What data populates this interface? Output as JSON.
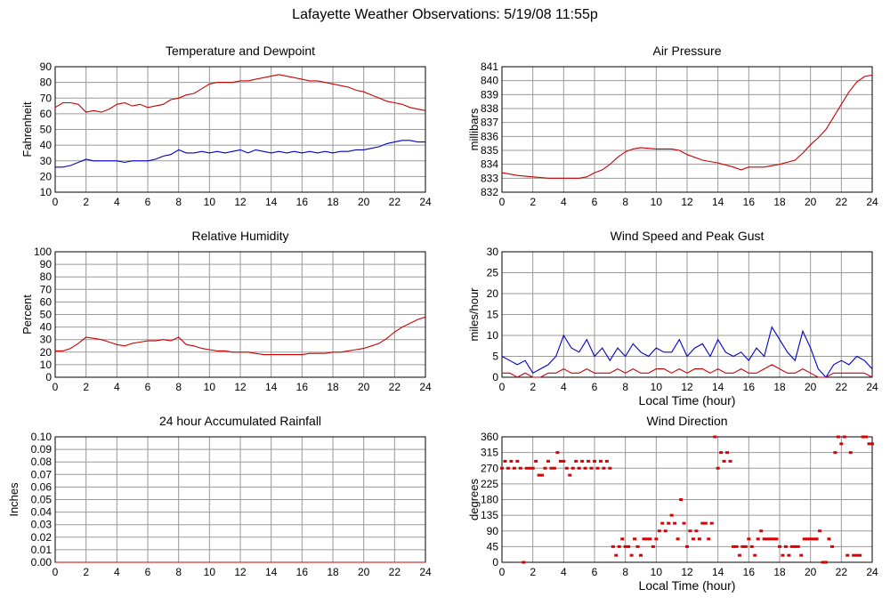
{
  "title": "Lafayette Weather Observations: 5/19/08 11:55p",
  "chart_data": [
    {
      "id": "temp",
      "type": "line",
      "title": "Temperature and Dewpoint",
      "xlabel": "",
      "ylabel": "Fahrenheit",
      "xlim": [
        0,
        24
      ],
      "ylim": [
        10,
        90
      ],
      "xticks": [
        0,
        2,
        4,
        6,
        8,
        10,
        12,
        14,
        16,
        18,
        20,
        22,
        24
      ],
      "yticks": [
        10,
        20,
        30,
        40,
        50,
        60,
        70,
        80,
        90
      ],
      "grid": true,
      "series": [
        {
          "color": "#cc0000",
          "x": [
            0,
            0.5,
            1,
            1.5,
            2,
            2.5,
            3,
            3.5,
            4,
            4.5,
            5,
            5.5,
            6,
            6.5,
            7,
            7.5,
            8,
            8.5,
            9,
            9.5,
            10,
            10.5,
            11,
            11.5,
            12,
            12.5,
            13,
            13.5,
            14,
            14.5,
            15,
            15.5,
            16,
            16.5,
            17,
            17.5,
            18,
            18.5,
            19,
            19.5,
            20,
            20.5,
            21,
            21.5,
            22,
            22.5,
            23,
            23.5,
            24
          ],
          "values": [
            64,
            67,
            67,
            66,
            61,
            62,
            61,
            63,
            66,
            67,
            65,
            66,
            64,
            65,
            66,
            69,
            70,
            72,
            73,
            76,
            79,
            80,
            80,
            80,
            81,
            81,
            82,
            83,
            84,
            85,
            84,
            83,
            82,
            81,
            81,
            80,
            79,
            78,
            77,
            75,
            74,
            72,
            70,
            68,
            67,
            66,
            64,
            63,
            62
          ]
        },
        {
          "color": "#0000cc",
          "x": [
            0,
            0.5,
            1,
            1.5,
            2,
            2.5,
            3,
            3.5,
            4,
            4.5,
            5,
            5.5,
            6,
            6.5,
            7,
            7.5,
            8,
            8.5,
            9,
            9.5,
            10,
            10.5,
            11,
            11.5,
            12,
            12.5,
            13,
            13.5,
            14,
            14.5,
            15,
            15.5,
            16,
            16.5,
            17,
            17.5,
            18,
            18.5,
            19,
            19.5,
            20,
            20.5,
            21,
            21.5,
            22,
            22.5,
            23,
            23.5,
            24
          ],
          "values": [
            26,
            26,
            27,
            29,
            31,
            30,
            30,
            30,
            30,
            29,
            30,
            30,
            30,
            31,
            33,
            34,
            37,
            35,
            35,
            36,
            35,
            36,
            35,
            36,
            37,
            35,
            37,
            36,
            35,
            36,
            35,
            36,
            35,
            36,
            35,
            36,
            35,
            36,
            36,
            37,
            37,
            38,
            39,
            41,
            42,
            43,
            43,
            42,
            42
          ]
        }
      ]
    },
    {
      "id": "pressure",
      "type": "line",
      "title": "Air Pressure",
      "xlabel": "",
      "ylabel": "millibars",
      "xlim": [
        0,
        24
      ],
      "ylim": [
        832,
        841
      ],
      "xticks": [
        0,
        2,
        4,
        6,
        8,
        10,
        12,
        14,
        16,
        18,
        20,
        22,
        24
      ],
      "yticks": [
        832,
        833,
        834,
        835,
        836,
        837,
        838,
        839,
        840,
        841
      ],
      "grid": true,
      "series": [
        {
          "color": "#cc0000",
          "x": [
            0,
            1,
            2,
            3,
            4,
            5,
            5.5,
            6,
            6.5,
            7,
            7.5,
            8,
            8.5,
            9,
            10,
            11,
            11.5,
            12,
            13,
            14,
            15,
            15.5,
            16,
            17,
            18,
            19,
            19.5,
            20,
            20.5,
            21,
            21.5,
            22,
            22.5,
            23,
            23.5,
            24
          ],
          "values": [
            833.4,
            833.2,
            833.1,
            833.0,
            833.0,
            833.0,
            833.1,
            833.4,
            833.6,
            834.0,
            834.5,
            834.9,
            835.1,
            835.2,
            835.1,
            835.1,
            835.0,
            834.7,
            834.3,
            834.1,
            833.8,
            833.6,
            833.8,
            833.8,
            834.0,
            834.3,
            834.8,
            835.4,
            835.9,
            836.5,
            837.4,
            838.3,
            839.2,
            839.9,
            840.3,
            840.4
          ]
        }
      ]
    },
    {
      "id": "humidity",
      "type": "line",
      "title": "Relative Humidity",
      "xlabel": "",
      "ylabel": "Percent",
      "xlim": [
        0,
        24
      ],
      "ylim": [
        0,
        100
      ],
      "xticks": [
        0,
        2,
        4,
        6,
        8,
        10,
        12,
        14,
        16,
        18,
        20,
        22,
        24
      ],
      "yticks": [
        0,
        10,
        20,
        30,
        40,
        50,
        60,
        70,
        80,
        90,
        100
      ],
      "grid": true,
      "series": [
        {
          "color": "#cc0000",
          "x": [
            0,
            0.5,
            1,
            1.5,
            2,
            2.5,
            3,
            3.5,
            4,
            4.5,
            5,
            5.5,
            6,
            6.5,
            7,
            7.5,
            8,
            8.5,
            9,
            9.5,
            10,
            10.5,
            11,
            11.5,
            12,
            12.5,
            13,
            13.5,
            14,
            14.5,
            15,
            15.5,
            16,
            16.5,
            17,
            17.5,
            18,
            18.5,
            19,
            19.5,
            20,
            20.5,
            21,
            21.5,
            22,
            22.5,
            23,
            23.5,
            24
          ],
          "values": [
            21,
            21,
            23,
            27,
            32,
            31,
            30,
            28,
            26,
            25,
            27,
            28,
            29,
            29,
            30,
            29,
            32,
            26,
            25,
            23,
            22,
            21,
            21,
            20,
            20,
            20,
            19,
            18,
            18,
            18,
            18,
            18,
            18,
            19,
            19,
            19,
            20,
            20,
            21,
            22,
            23,
            25,
            27,
            31,
            36,
            40,
            43,
            46,
            48
          ]
        }
      ]
    },
    {
      "id": "wind",
      "type": "line",
      "title": "Wind Speed and Peak Gust",
      "xlabel": "Local Time (hour)",
      "ylabel": "miles/hour",
      "xlim": [
        0,
        24
      ],
      "ylim": [
        0,
        30
      ],
      "xticks": [
        0,
        2,
        4,
        6,
        8,
        10,
        12,
        14,
        16,
        18,
        20,
        22,
        24
      ],
      "yticks": [
        0,
        5,
        10,
        15,
        20,
        25,
        30
      ],
      "grid": true,
      "series": [
        {
          "color": "#0000cc",
          "x": [
            0,
            0.5,
            1,
            1.5,
            2,
            2.5,
            3,
            3.5,
            4,
            4.5,
            5,
            5.5,
            6,
            6.5,
            7,
            7.5,
            8,
            8.5,
            9,
            9.5,
            10,
            10.5,
            11,
            11.5,
            12,
            12.5,
            13,
            13.5,
            14,
            14.5,
            15,
            15.5,
            16,
            16.5,
            17,
            17.5,
            18,
            18.5,
            19,
            19.5,
            20,
            20.5,
            21,
            21.5,
            22,
            22.5,
            23,
            23.5,
            24
          ],
          "values": [
            5,
            4,
            3,
            4,
            1,
            2,
            3,
            5,
            10,
            7,
            6,
            9,
            5,
            7,
            4,
            7,
            5,
            8,
            6,
            5,
            7,
            6,
            6,
            9,
            5,
            7,
            8,
            5,
            9,
            6,
            5,
            6,
            4,
            7,
            5,
            12,
            9,
            6,
            4,
            11,
            7,
            2,
            0,
            3,
            4,
            3,
            5,
            4,
            2
          ]
        },
        {
          "color": "#cc0000",
          "x": [
            0,
            0.5,
            1,
            1.5,
            2,
            2.5,
            3,
            3.5,
            4,
            4.5,
            5,
            5.5,
            6,
            6.5,
            7,
            7.5,
            8,
            8.5,
            9,
            9.5,
            10,
            10.5,
            11,
            11.5,
            12,
            12.5,
            13,
            13.5,
            14,
            14.5,
            15,
            15.5,
            16,
            16.5,
            17,
            17.5,
            18,
            18.5,
            19,
            19.5,
            20,
            20.5,
            21,
            21.5,
            22,
            22.5,
            23,
            23.5,
            24
          ],
          "values": [
            1,
            1,
            0,
            1,
            0,
            0,
            1,
            1,
            2,
            1,
            1,
            2,
            1,
            1,
            1,
            2,
            1,
            2,
            1,
            1,
            2,
            2,
            1,
            2,
            1,
            2,
            2,
            1,
            2,
            1,
            1,
            2,
            1,
            1,
            2,
            3,
            2,
            1,
            1,
            2,
            1,
            0,
            0,
            1,
            1,
            1,
            1,
            1,
            0
          ]
        }
      ]
    },
    {
      "id": "rain",
      "type": "line",
      "title": "24 hour Accumulated Rainfall",
      "xlabel": "",
      "ylabel": "Inches",
      "xlim": [
        0,
        24
      ],
      "ylim": [
        0,
        0.1
      ],
      "xticks": [
        0,
        2,
        4,
        6,
        8,
        10,
        12,
        14,
        16,
        18,
        20,
        22,
        24
      ],
      "yticks": [
        0.0,
        0.01,
        0.02,
        0.03,
        0.04,
        0.05,
        0.06,
        0.07,
        0.08,
        0.09,
        0.1
      ],
      "ytick_labels": [
        "0.00",
        "0.01",
        "0.02",
        "0.03",
        "0.04",
        "0.05",
        "0.06",
        "0.07",
        "0.08",
        "0.09",
        "0.10"
      ],
      "grid": true,
      "series": [
        {
          "color": "#cc0000",
          "x": [
            0,
            24
          ],
          "values": [
            0,
            0
          ]
        }
      ]
    },
    {
      "id": "direction",
      "type": "scatter",
      "title": "Wind Direction",
      "xlabel": "Local Time (hour)",
      "ylabel": "degrees",
      "xlim": [
        0,
        24
      ],
      "ylim": [
        0,
        360
      ],
      "xticks": [
        0,
        2,
        4,
        6,
        8,
        10,
        12,
        14,
        16,
        18,
        20,
        22,
        24
      ],
      "yticks": [
        0,
        45,
        90,
        135,
        180,
        225,
        270,
        315,
        360
      ],
      "grid": true,
      "series": [
        {
          "color": "#dd0000",
          "x": [
            0,
            0.2,
            0.4,
            0.6,
            0.8,
            1.0,
            1.2,
            1.4,
            1.6,
            1.8,
            2.0,
            2.2,
            2.4,
            2.6,
            2.8,
            3.0,
            3.2,
            3.4,
            3.6,
            3.8,
            4.0,
            4.2,
            4.4,
            4.6,
            4.8,
            5.0,
            5.2,
            5.4,
            5.6,
            5.8,
            6.0,
            6.2,
            6.4,
            6.6,
            6.8,
            7.0,
            7.2,
            7.4,
            7.6,
            7.8,
            8.0,
            8.2,
            8.4,
            8.6,
            8.8,
            9.0,
            9.2,
            9.4,
            9.6,
            9.8,
            10.0,
            10.2,
            10.4,
            10.6,
            10.8,
            11.0,
            11.2,
            11.4,
            11.6,
            11.8,
            12.0,
            12.2,
            12.4,
            12.6,
            12.8,
            13.0,
            13.2,
            13.4,
            13.6,
            13.8,
            14.0,
            14.2,
            14.4,
            14.6,
            14.8,
            15.0,
            15.2,
            15.4,
            15.6,
            15.8,
            16.0,
            16.2,
            16.4,
            16.6,
            16.8,
            17.0,
            17.2,
            17.4,
            17.6,
            17.8,
            18.0,
            18.2,
            18.4,
            18.6,
            18.8,
            19.0,
            19.2,
            19.4,
            19.6,
            19.8,
            20.0,
            20.2,
            20.4,
            20.6,
            20.8,
            21.0,
            21.2,
            21.4,
            21.6,
            21.8,
            22.0,
            22.2,
            22.4,
            22.6,
            22.8,
            23.0,
            23.2,
            23.4,
            23.6,
            23.8,
            24.0
          ],
          "values": [
            270,
            290,
            270,
            290,
            270,
            290,
            270,
            0,
            270,
            270,
            270,
            290,
            250,
            250,
            270,
            290,
            270,
            270,
            315,
            290,
            290,
            270,
            250,
            270,
            290,
            270,
            290,
            270,
            290,
            270,
            290,
            270,
            290,
            270,
            290,
            270,
            45,
            20,
            45,
            67,
            45,
            45,
            20,
            67,
            45,
            20,
            67,
            67,
            67,
            45,
            67,
            90,
            112,
            90,
            112,
            135,
            112,
            67,
            180,
            112,
            45,
            90,
            67,
            90,
            67,
            112,
            112,
            67,
            112,
            360,
            270,
            315,
            290,
            315,
            290,
            45,
            45,
            20,
            45,
            45,
            67,
            45,
            20,
            67,
            90,
            67,
            67,
            67,
            67,
            67,
            45,
            20,
            45,
            20,
            45,
            45,
            45,
            20,
            67,
            67,
            67,
            67,
            67,
            90,
            0,
            0,
            67,
            45,
            315,
            360,
            340,
            360,
            20,
            315,
            20,
            20,
            20,
            360,
            360,
            340,
            340
          ]
        }
      ]
    }
  ]
}
